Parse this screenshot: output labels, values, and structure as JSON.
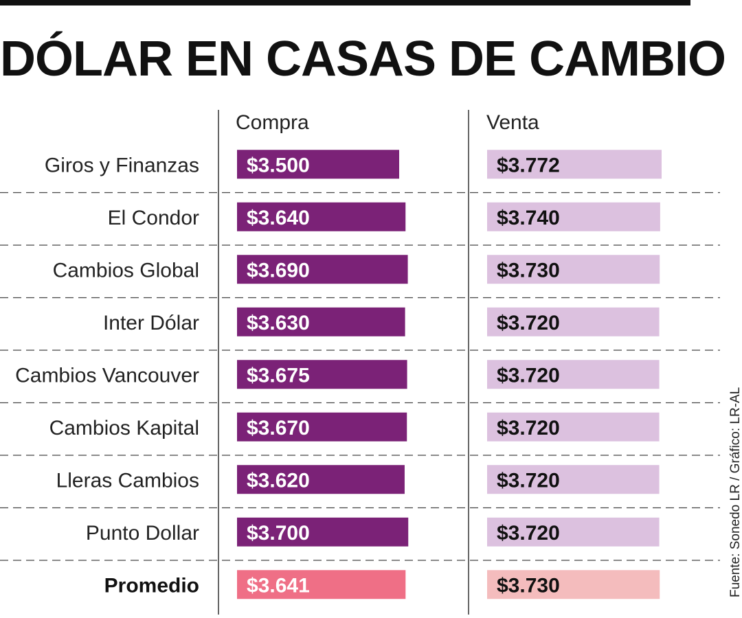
{
  "title": "DÓLAR EN CASAS DE CAMBIO",
  "source": "Fuente: Sonedo LR / Gráfico: LR-AL",
  "colors": {
    "compra_bar": "#7b2277",
    "venta_bar": "#dcc1df",
    "promedio_compra": "#ef6f86",
    "promedio_venta": "#f4bcbd",
    "text": "#222222",
    "bar_label_light": "#ffffff",
    "bar_label_dark": "#111111"
  },
  "chart_data": {
    "type": "table",
    "columns": [
      "Compra",
      "Venta"
    ],
    "rows": [
      {
        "label": "Giros y Finanzas",
        "compra": 3500,
        "venta": 3772,
        "compra_label": "$3.500",
        "venta_label": "$3.772"
      },
      {
        "label": "El Condor",
        "compra": 3640,
        "venta": 3740,
        "compra_label": "$3.640",
        "venta_label": "$3.740"
      },
      {
        "label": "Cambios Global",
        "compra": 3690,
        "venta": 3730,
        "compra_label": "$3.690",
        "venta_label": "$3.730"
      },
      {
        "label": "Inter Dólar",
        "compra": 3630,
        "venta": 3720,
        "compra_label": "$3.630",
        "venta_label": "$3.720"
      },
      {
        "label": "Cambios Vancouver",
        "compra": 3675,
        "venta": 3720,
        "compra_label": "$3.675",
        "venta_label": "$3.720"
      },
      {
        "label": "Cambios Kapital",
        "compra": 3670,
        "venta": 3720,
        "compra_label": "$3.670",
        "venta_label": "$3.720"
      },
      {
        "label": "Lleras Cambios",
        "compra": 3620,
        "venta": 3720,
        "compra_label": "$3.620",
        "venta_label": "$3.720"
      },
      {
        "label": "Punto Dollar",
        "compra": 3700,
        "venta": 3720,
        "compra_label": "$3.700",
        "venta_label": "$3.720"
      }
    ],
    "summary": {
      "label": "Promedio",
      "compra": 3641,
      "venta": 3730,
      "compra_label": "$3.641",
      "venta_label": "$3.730"
    }
  }
}
